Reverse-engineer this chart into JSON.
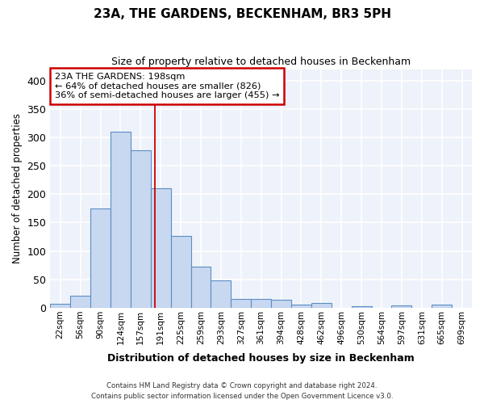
{
  "title": "23A, THE GARDENS, BECKENHAM, BR3 5PH",
  "subtitle": "Size of property relative to detached houses in Beckenham",
  "xlabel": "Distribution of detached houses by size in Beckenham",
  "ylabel": "Number of detached properties",
  "bar_color": "#c8d8f0",
  "bar_edge_color": "#5b8ec4",
  "background_color": "#eef2fa",
  "grid_color": "#ffffff",
  "bin_labels": [
    "22sqm",
    "56sqm",
    "90sqm",
    "124sqm",
    "157sqm",
    "191sqm",
    "225sqm",
    "259sqm",
    "293sqm",
    "327sqm",
    "361sqm",
    "394sqm",
    "428sqm",
    "462sqm",
    "496sqm",
    "530sqm",
    "564sqm",
    "597sqm",
    "631sqm",
    "665sqm",
    "699sqm"
  ],
  "bar_heights": [
    7,
    21,
    175,
    310,
    277,
    210,
    126,
    73,
    49,
    15,
    15,
    14,
    5,
    9,
    0,
    3,
    0,
    4,
    0,
    5,
    0
  ],
  "ylim": [
    0,
    420
  ],
  "yticks": [
    0,
    50,
    100,
    150,
    200,
    250,
    300,
    350,
    400
  ],
  "annotation_line1": "23A THE GARDENS: 198sqm",
  "annotation_line2": "← 64% of detached houses are smaller (826)",
  "annotation_line3": "36% of semi-detached houses are larger (455) →",
  "annotation_box_color": "#ffffff",
  "annotation_box_edge_color": "#cc0000",
  "footnote1": "Contains HM Land Registry data © Crown copyright and database right 2024.",
  "footnote2": "Contains public sector information licensed under the Open Government Licence v3.0.",
  "fig_bg": "#ffffff"
}
